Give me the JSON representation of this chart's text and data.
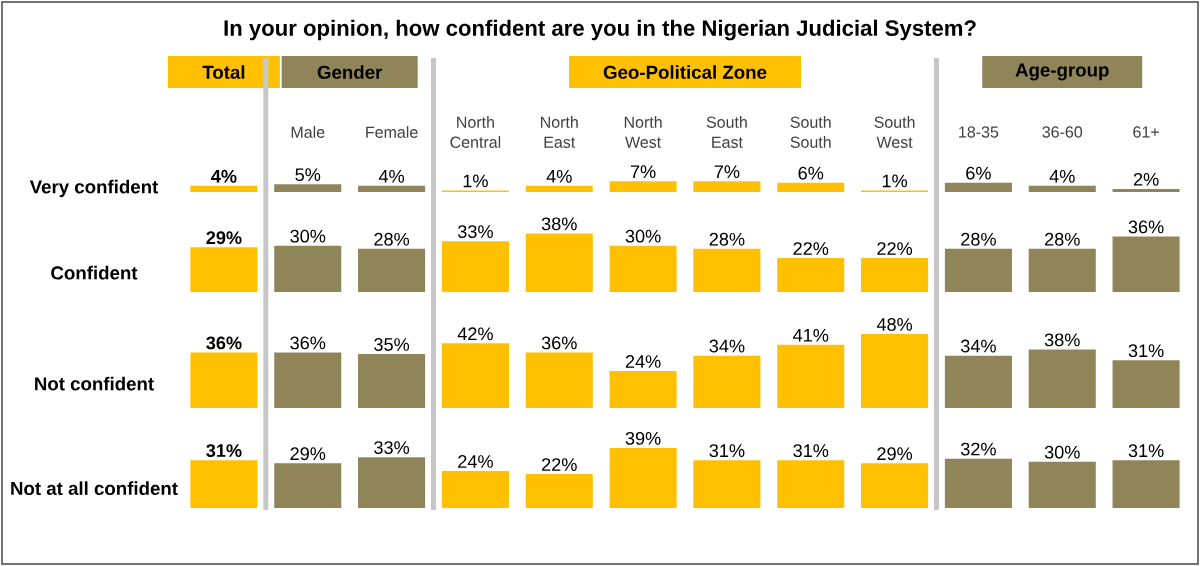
{
  "chart_data": [
    {
      "type": "bar",
      "title": "In your opinion, how confident are you in the Nigerian Judicial System?",
      "annotations": [
        "Total",
        "Gender",
        "Geo-Political  Zone",
        "Age-group"
      ],
      "ylabel": "Very confident",
      "categories": [
        null,
        "Male",
        "Female",
        "North Central",
        "North East",
        "North West",
        "South East",
        "South South",
        "South West",
        "18-35",
        "36-60",
        "61+"
      ],
      "values": [
        4,
        5,
        4,
        1,
        4,
        7,
        7,
        6,
        1,
        6,
        4,
        2
      ],
      "value_labels": [
        "**4%**",
        "5%",
        "4%",
        "1%",
        "4%",
        "7%",
        "7%",
        "6%",
        "1%",
        "6%",
        "4%",
        "2%"
      ],
      "colors": [
        "#ffc000",
        "#8f8558",
        "#8f8558",
        "#ffc000",
        "#ffc000",
        "#ffc000",
        "#ffc000",
        "#ffc000",
        "#ffc000",
        "#8f8558",
        "#8f8558",
        "#8f8558"
      ]
    },
    {
      "type": "bar",
      "ylabel": "Confident",
      "categories": [
        null,
        null,
        null,
        null,
        null,
        null,
        null,
        null,
        null,
        null,
        null,
        null
      ],
      "values": [
        29,
        30,
        28,
        33,
        38,
        30,
        28,
        22,
        22,
        28,
        28,
        36
      ],
      "value_labels": [
        "**29%**",
        "30%",
        "28%",
        "33%",
        "38%",
        "30%",
        "28%",
        "22%",
        "22%",
        "28%",
        "28%",
        "36%"
      ],
      "colors": [
        "#ffc000",
        "#8f8558",
        "#8f8558",
        "#ffc000",
        "#ffc000",
        "#ffc000",
        "#ffc000",
        "#ffc000",
        "#ffc000",
        "#8f8558",
        "#8f8558",
        "#8f8558"
      ]
    },
    {
      "type": "bar",
      "ylabel": "Not confident",
      "categories": [
        null,
        null,
        null,
        null,
        null,
        null,
        null,
        null,
        null,
        null,
        null,
        null
      ],
      "values": [
        36,
        36,
        35,
        42,
        36,
        24,
        34,
        41,
        48,
        34,
        38,
        31
      ],
      "value_labels": [
        "**36%**",
        "36%",
        "35%",
        "42%",
        "36%",
        "24%",
        "34%",
        "41%",
        "48%",
        "34%",
        "38%",
        "31%"
      ],
      "colors": [
        "#ffc000",
        "#8f8558",
        "#8f8558",
        "#ffc000",
        "#ffc000",
        "#ffc000",
        "#ffc000",
        "#ffc000",
        "#ffc000",
        "#8f8558",
        "#8f8558",
        "#8f8558"
      ]
    },
    {
      "type": "bar",
      "ylabel": "Not at all confident",
      "categories": [
        null,
        null,
        null,
        null,
        null,
        null,
        null,
        null,
        null,
        null,
        null,
        null
      ],
      "values": [
        31,
        29,
        33,
        24,
        22,
        39,
        31,
        31,
        29,
        32,
        30,
        31
      ],
      "value_labels": [
        "**31%**",
        "29%",
        "33%",
        "24%",
        "22%",
        "39%",
        "31%",
        "31%",
        "29%",
        "32%",
        "30%",
        "31%"
      ],
      "colors": [
        "#ffc000",
        "#8f8558",
        "#8f8558",
        "#ffc000",
        "#ffc000",
        "#ffc000",
        "#ffc000",
        "#ffc000",
        "#ffc000",
        "#8f8558",
        "#8f8558",
        "#8f8558"
      ]
    }
  ]
}
